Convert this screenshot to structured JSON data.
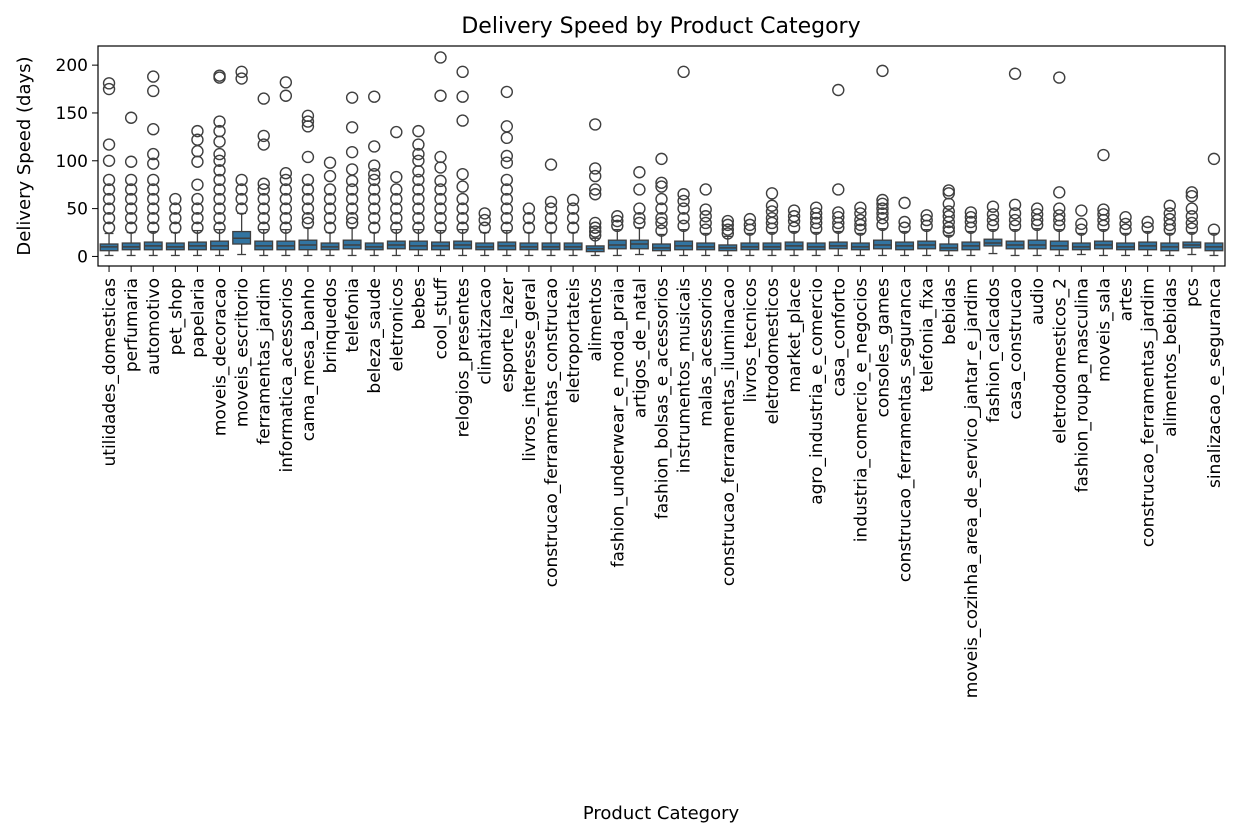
{
  "chart_data": {
    "type": "box",
    "title": "Delivery Speed by Product Category",
    "xlabel": "Product Category",
    "ylabel": "Delivery Speed (days)",
    "ylim": [
      -10,
      220
    ],
    "yticks": [
      0,
      50,
      100,
      150,
      200
    ],
    "grid": false,
    "box_color": "#3274a1",
    "categories": [
      {
        "name": "utilidades_domesticas",
        "q1": 6,
        "median": 10,
        "q3": 13,
        "wl": 1,
        "wh": 24,
        "outliers": [
          30,
          40,
          50,
          60,
          70,
          80,
          100,
          117,
          175,
          181
        ]
      },
      {
        "name": "perfumaria",
        "q1": 7,
        "median": 10,
        "q3": 14,
        "wl": 1,
        "wh": 25,
        "outliers": [
          30,
          40,
          50,
          60,
          70,
          80,
          99,
          145
        ]
      },
      {
        "name": "automotivo",
        "q1": 7,
        "median": 11,
        "q3": 15,
        "wl": 1,
        "wh": 26,
        "outliers": [
          30,
          40,
          50,
          60,
          70,
          80,
          97,
          107,
          133,
          173,
          188
        ]
      },
      {
        "name": "pet_shop",
        "q1": 7,
        "median": 10,
        "q3": 14,
        "wl": 1,
        "wh": 25,
        "outliers": [
          30,
          40,
          50,
          60
        ]
      },
      {
        "name": "papelaria",
        "q1": 7,
        "median": 11,
        "q3": 15,
        "wl": 1,
        "wh": 27,
        "outliers": [
          30,
          40,
          50,
          60,
          75,
          99,
          110,
          122,
          131
        ]
      },
      {
        "name": "moveis_decoracao",
        "q1": 7,
        "median": 11,
        "q3": 16,
        "wl": 1,
        "wh": 28,
        "outliers": [
          30,
          40,
          50,
          60,
          70,
          80,
          90,
          100,
          107,
          120,
          131,
          141,
          187,
          189
        ]
      },
      {
        "name": "moveis_escritorio",
        "q1": 13,
        "median": 19,
        "q3": 26,
        "wl": 2,
        "wh": 45,
        "outliers": [
          50,
          60,
          70,
          80,
          186,
          193
        ]
      },
      {
        "name": "ferramentas_jardim",
        "q1": 7,
        "median": 11,
        "q3": 16,
        "wl": 1,
        "wh": 28,
        "outliers": [
          30,
          40,
          50,
          60,
          70,
          76,
          117,
          126,
          165
        ]
      },
      {
        "name": "informatica_acessorios",
        "q1": 7,
        "median": 11,
        "q3": 16,
        "wl": 1,
        "wh": 28,
        "outliers": [
          30,
          40,
          50,
          60,
          70,
          80,
          87,
          168,
          182
        ]
      },
      {
        "name": "cama_mesa_banho",
        "q1": 7,
        "median": 12,
        "q3": 17,
        "wl": 1,
        "wh": 30,
        "outliers": [
          35,
          40,
          50,
          60,
          70,
          80,
          104,
          136,
          141,
          147
        ]
      },
      {
        "name": "brinquedos",
        "q1": 7,
        "median": 10,
        "q3": 14,
        "wl": 1,
        "wh": 25,
        "outliers": [
          30,
          40,
          50,
          60,
          70,
          84,
          98
        ]
      },
      {
        "name": "telefonia",
        "q1": 8,
        "median": 12,
        "q3": 17,
        "wl": 1,
        "wh": 30,
        "outliers": [
          35,
          40,
          50,
          60,
          70,
          79,
          91,
          109,
          135,
          166
        ]
      },
      {
        "name": "beleza_saude",
        "q1": 7,
        "median": 10,
        "q3": 14,
        "wl": 1,
        "wh": 25,
        "outliers": [
          30,
          40,
          50,
          60,
          70,
          80,
          86,
          95,
          115,
          167
        ]
      },
      {
        "name": "eletronicos",
        "q1": 8,
        "median": 12,
        "q3": 16,
        "wl": 1,
        "wh": 28,
        "outliers": [
          30,
          40,
          50,
          60,
          70,
          83,
          130
        ]
      },
      {
        "name": "bebes",
        "q1": 7,
        "median": 11,
        "q3": 16,
        "wl": 1,
        "wh": 28,
        "outliers": [
          30,
          40,
          50,
          60,
          70,
          80,
          89,
          100,
          107,
          117,
          131
        ]
      },
      {
        "name": "cool_stuff",
        "q1": 7,
        "median": 11,
        "q3": 15,
        "wl": 1,
        "wh": 27,
        "outliers": [
          30,
          40,
          50,
          60,
          70,
          79,
          93,
          104,
          168,
          208
        ]
      },
      {
        "name": "relogios_presentes",
        "q1": 8,
        "median": 12,
        "q3": 16,
        "wl": 1,
        "wh": 28,
        "outliers": [
          30,
          40,
          50,
          60,
          73,
          86,
          142,
          167,
          193
        ]
      },
      {
        "name": "climatizacao",
        "q1": 7,
        "median": 10,
        "q3": 14,
        "wl": 1,
        "wh": 25,
        "outliers": [
          30,
          38,
          45
        ]
      },
      {
        "name": "esporte_lazer",
        "q1": 7,
        "median": 11,
        "q3": 15,
        "wl": 1,
        "wh": 27,
        "outliers": [
          30,
          40,
          50,
          60,
          70,
          80,
          98,
          105,
          124,
          136,
          172
        ]
      },
      {
        "name": "livros_interesse_geral",
        "q1": 7,
        "median": 10,
        "q3": 14,
        "wl": 1,
        "wh": 25,
        "outliers": [
          30,
          40,
          50
        ]
      },
      {
        "name": "construcao_ferramentas_construcao",
        "q1": 7,
        "median": 10,
        "q3": 14,
        "wl": 1,
        "wh": 25,
        "outliers": [
          30,
          40,
          50,
          57,
          96
        ]
      },
      {
        "name": "eletroportateis",
        "q1": 7,
        "median": 10,
        "q3": 14,
        "wl": 1,
        "wh": 25,
        "outliers": [
          30,
          40,
          50,
          59
        ]
      },
      {
        "name": "alimentos",
        "q1": 5,
        "median": 8,
        "q3": 11,
        "wl": 1,
        "wh": 19,
        "outliers": [
          22,
          26,
          30,
          35,
          65,
          70,
          84,
          92,
          138
        ]
      },
      {
        "name": "fashion_underwear_e_moda_praia",
        "q1": 8,
        "median": 12,
        "q3": 17,
        "wl": 1,
        "wh": 28,
        "outliers": [
          32,
          37,
          42
        ]
      },
      {
        "name": "artigos_de_natal",
        "q1": 8,
        "median": 13,
        "q3": 17,
        "wl": 2,
        "wh": 30,
        "outliers": [
          35,
          40,
          50,
          70,
          88
        ]
      },
      {
        "name": "fashion_bolsas_e_acessorios",
        "q1": 6,
        "median": 9,
        "q3": 13,
        "wl": 1,
        "wh": 23,
        "outliers": [
          27,
          35,
          40,
          50,
          60,
          73,
          77,
          102
        ]
      },
      {
        "name": "instrumentos_musicais",
        "q1": 7,
        "median": 11,
        "q3": 16,
        "wl": 1,
        "wh": 28,
        "outliers": [
          32,
          40,
          50,
          58,
          65,
          193
        ]
      },
      {
        "name": "malas_acessorios",
        "q1": 7,
        "median": 10,
        "q3": 14,
        "wl": 1,
        "wh": 24,
        "outliers": [
          28,
          35,
          42,
          49,
          70
        ]
      },
      {
        "name": "construcao_ferramentas_iluminacao",
        "q1": 6,
        "median": 9,
        "q3": 12,
        "wl": 1,
        "wh": 21,
        "outliers": [
          24,
          28,
          33,
          37
        ]
      },
      {
        "name": "livros_tecnicos",
        "q1": 7,
        "median": 10,
        "q3": 14,
        "wl": 1,
        "wh": 24,
        "outliers": [
          28,
          33,
          39
        ]
      },
      {
        "name": "eletrodomesticos",
        "q1": 7,
        "median": 10,
        "q3": 14,
        "wl": 1,
        "wh": 25,
        "outliers": [
          29,
          35,
          40,
          47,
          53,
          66
        ]
      },
      {
        "name": "market_place",
        "q1": 7,
        "median": 11,
        "q3": 15,
        "wl": 1,
        "wh": 26,
        "outliers": [
          30,
          37,
          42,
          48
        ]
      },
      {
        "name": "agro_industria_e_comercio",
        "q1": 7,
        "median": 10,
        "q3": 14,
        "wl": 1,
        "wh": 25,
        "outliers": [
          29,
          35,
          40,
          45,
          51
        ]
      },
      {
        "name": "casa_conforto",
        "q1": 8,
        "median": 11,
        "q3": 15,
        "wl": 1,
        "wh": 26,
        "outliers": [
          30,
          35,
          41,
          46,
          70,
          174
        ]
      },
      {
        "name": "industria_comercio_e_negocios",
        "q1": 7,
        "median": 10,
        "q3": 14,
        "wl": 1,
        "wh": 24,
        "outliers": [
          28,
          33,
          38,
          45,
          51
        ]
      },
      {
        "name": "consoles_games",
        "q1": 8,
        "median": 12,
        "q3": 17,
        "wl": 1,
        "wh": 29,
        "outliers": [
          33,
          40,
          45,
          50,
          55,
          59,
          194
        ]
      },
      {
        "name": "construcao_ferramentas_seguranca",
        "q1": 7,
        "median": 11,
        "q3": 15,
        "wl": 1,
        "wh": 26,
        "outliers": [
          30,
          36,
          56
        ]
      },
      {
        "name": "telefonia_fixa",
        "q1": 8,
        "median": 12,
        "q3": 16,
        "wl": 1,
        "wh": 28,
        "outliers": [
          32,
          38,
          43
        ]
      },
      {
        "name": "bebidas",
        "q1": 6,
        "median": 9,
        "q3": 13,
        "wl": 1,
        "wh": 22,
        "outliers": [
          26,
          30,
          36,
          42,
          47,
          55,
          66,
          69
        ]
      },
      {
        "name": "moveis_cozinha_area_de_servico_jantar_e_jardim",
        "q1": 7,
        "median": 11,
        "q3": 15,
        "wl": 1,
        "wh": 26,
        "outliers": [
          30,
          36,
          41,
          46
        ]
      },
      {
        "name": "fashion_calcados",
        "q1": 11,
        "median": 14,
        "q3": 18,
        "wl": 3,
        "wh": 28,
        "outliers": [
          32,
          38,
          44,
          52
        ]
      },
      {
        "name": "casa_construcao",
        "q1": 8,
        "median": 12,
        "q3": 16,
        "wl": 1,
        "wh": 28,
        "outliers": [
          32,
          38,
          45,
          54,
          191
        ]
      },
      {
        "name": "audio",
        "q1": 8,
        "median": 12,
        "q3": 17,
        "wl": 1,
        "wh": 29,
        "outliers": [
          33,
          38,
          44,
          50
        ]
      },
      {
        "name": "eletrodomesticos_2",
        "q1": 7,
        "median": 11,
        "q3": 16,
        "wl": 1,
        "wh": 28,
        "outliers": [
          32,
          38,
          43,
          50,
          67,
          187
        ]
      },
      {
        "name": "fashion_roupa_masculina",
        "q1": 7,
        "median": 10,
        "q3": 14,
        "wl": 2,
        "wh": 24,
        "outliers": [
          28,
          34,
          48
        ]
      },
      {
        "name": "moveis_sala",
        "q1": 8,
        "median": 12,
        "q3": 16,
        "wl": 1,
        "wh": 28,
        "outliers": [
          32,
          38,
          44,
          49,
          106
        ]
      },
      {
        "name": "artes",
        "q1": 7,
        "median": 10,
        "q3": 14,
        "wl": 1,
        "wh": 24,
        "outliers": [
          28,
          34,
          41
        ]
      },
      {
        "name": "construcao_ferramentas_jardim",
        "q1": 7,
        "median": 11,
        "q3": 15,
        "wl": 1,
        "wh": 26,
        "outliers": [
          30,
          36
        ]
      },
      {
        "name": "alimentos_bebidas",
        "q1": 6,
        "median": 10,
        "q3": 14,
        "wl": 1,
        "wh": 24,
        "outliers": [
          28,
          33,
          39,
          45,
          53
        ]
      },
      {
        "name": "pcs",
        "q1": 9,
        "median": 12,
        "q3": 15,
        "wl": 2,
        "wh": 25,
        "outliers": [
          29,
          35,
          42,
          50,
          63,
          67
        ]
      },
      {
        "name": "sinalizacao_e_seguranca",
        "q1": 6,
        "median": 10,
        "q3": 14,
        "wl": 1,
        "wh": 24,
        "outliers": [
          28,
          102
        ]
      }
    ]
  }
}
